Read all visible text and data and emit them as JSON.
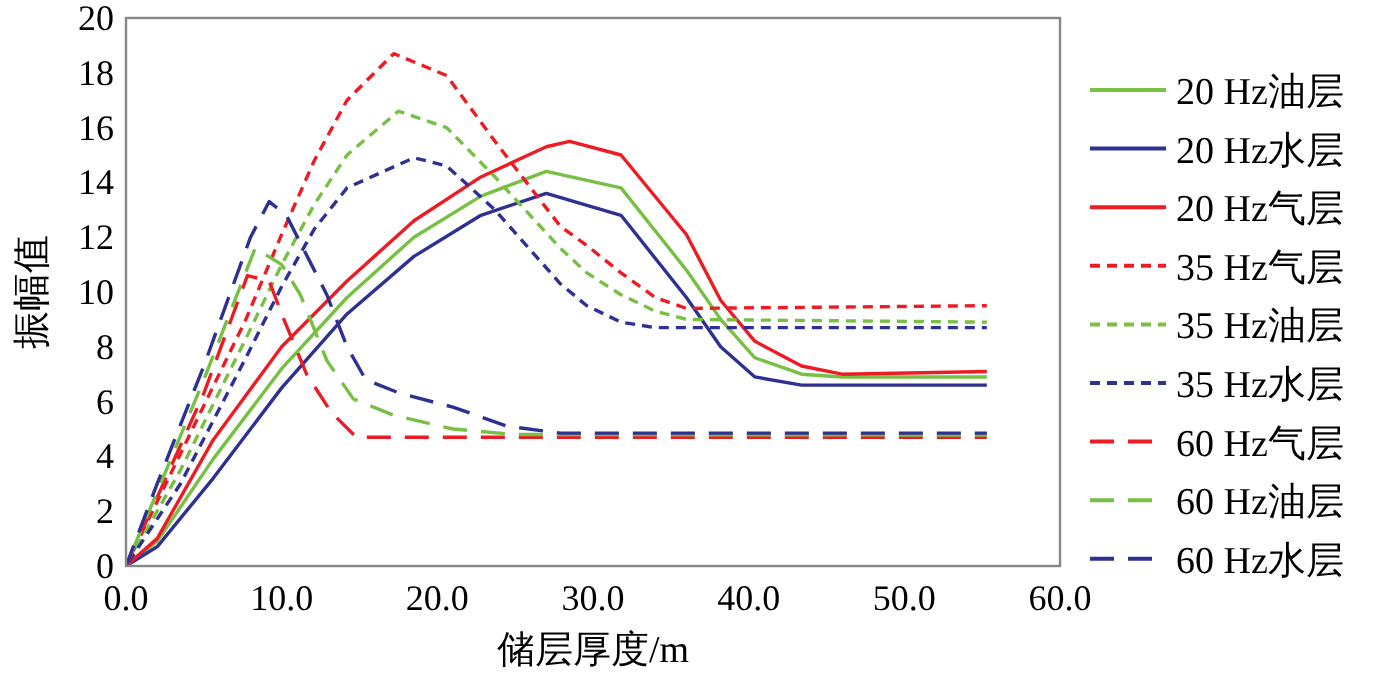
{
  "chart_data": {
    "type": "line",
    "xlabel": "储层厚度/m",
    "ylabel": "振幅值",
    "xlim": [
      0,
      60
    ],
    "ylim": [
      0,
      20
    ],
    "xticks": [
      {
        "value": 0,
        "label": "0.0"
      },
      {
        "value": 10,
        "label": "10.0"
      },
      {
        "value": 20,
        "label": "20.0"
      },
      {
        "value": 30,
        "label": "30.0"
      },
      {
        "value": 40,
        "label": "40.0"
      },
      {
        "value": 50,
        "label": "50.0"
      },
      {
        "value": 60,
        "label": "60.0"
      }
    ],
    "yticks": [
      0,
      2,
      4,
      6,
      8,
      10,
      12,
      14,
      16,
      18,
      20
    ],
    "grid": false,
    "legend": "right",
    "marker": "none",
    "series": [
      {
        "name": "20 Hz油层",
        "color": "#77c043",
        "line_style": "solid",
        "x": [
          0,
          2,
          5.6,
          10,
          14.2,
          18.5,
          22.8,
          27,
          31.8,
          36,
          38.2,
          40.4,
          43.4,
          46,
          55.3
        ],
        "values": [
          0,
          0.9,
          3.9,
          7.2,
          9.8,
          12,
          13.5,
          14.4,
          13.8,
          10.8,
          9,
          7.6,
          7,
          6.9,
          6.9
        ]
      },
      {
        "name": "20 Hz水层",
        "color": "#2e3192",
        "line_style": "solid",
        "x": [
          0,
          2,
          5.6,
          10,
          14.2,
          18.5,
          22.8,
          27,
          31.8,
          36,
          38.2,
          40.4,
          43.4,
          46,
          55.3
        ],
        "values": [
          0,
          0.7,
          3.2,
          6.5,
          9.2,
          11.3,
          12.8,
          13.6,
          12.8,
          9.8,
          8,
          6.9,
          6.6,
          6.6,
          6.6
        ]
      },
      {
        "name": "20 Hz气层",
        "color": "#ed1c24",
        "line_style": "solid",
        "x": [
          0,
          2,
          5.6,
          10,
          14.2,
          18.5,
          22.8,
          27,
          28.5,
          31.8,
          36,
          38.2,
          40.4,
          43.4,
          46,
          55.3
        ],
        "values": [
          0,
          1,
          4.6,
          8,
          10.4,
          12.6,
          14.2,
          15.3,
          15.5,
          15,
          12.1,
          9.7,
          8.2,
          7.3,
          7,
          7.1
        ]
      },
      {
        "name": "35 Hz气层",
        "color": "#ed1c24",
        "line_style": "dotted",
        "x": [
          0,
          3.5,
          7.7,
          10,
          12.1,
          14.2,
          17.2,
          20.6,
          23.7,
          27.9,
          29.6,
          31.8,
          34,
          36,
          55.3
        ],
        "values": [
          0,
          4.1,
          9,
          12.1,
          14.8,
          17,
          18.7,
          17.9,
          15.5,
          12.4,
          11.7,
          10.7,
          9.8,
          9.4,
          9.5
        ]
      },
      {
        "name": "35 Hz油层",
        "color": "#77c043",
        "line_style": "dotted",
        "x": [
          0,
          3.5,
          7.7,
          10,
          12.1,
          14.2,
          17.5,
          20.6,
          23.7,
          27.9,
          29.6,
          31.8,
          34,
          36,
          55.3
        ],
        "values": [
          0,
          3.5,
          8.3,
          11,
          13.2,
          15,
          16.6,
          16,
          14.2,
          11.6,
          10.7,
          9.9,
          9.3,
          9,
          8.9
        ]
      },
      {
        "name": "35 Hz水层",
        "color": "#2e3192",
        "line_style": "dotted",
        "x": [
          0,
          3.5,
          7.7,
          10,
          12.1,
          14.2,
          18.5,
          20.6,
          23.7,
          27.9,
          29.6,
          31.8,
          34,
          55.3
        ],
        "values": [
          0,
          3,
          7.6,
          10.2,
          12.3,
          13.8,
          14.9,
          14.6,
          13,
          10.3,
          9.5,
          8.9,
          8.7,
          8.7
        ]
      },
      {
        "name": "60 Hz气层",
        "color": "#ed1c24",
        "line_style": "dashed",
        "x": [
          0,
          2,
          5,
          7.8,
          9.2,
          10,
          11.6,
          13.2,
          14.8,
          55.3
        ],
        "values": [
          0,
          2.5,
          6.3,
          10.6,
          10.4,
          9.2,
          7,
          5.6,
          4.7,
          4.7
        ]
      },
      {
        "name": "60 Hz油层",
        "color": "#77c043",
        "line_style": "dashed",
        "x": [
          0,
          2,
          5,
          8.3,
          10,
          11.2,
          12.9,
          14.6,
          17.2,
          21,
          25,
          55.3
        ],
        "values": [
          0,
          2.7,
          6.8,
          11.6,
          11,
          9.9,
          7.5,
          6.1,
          5.5,
          5,
          4.8,
          4.78
        ]
      },
      {
        "name": "60 Hz水层",
        "color": "#2e3192",
        "line_style": "dashed",
        "x": [
          0,
          2,
          5,
          8,
          9.2,
          10.3,
          12.9,
          14.2,
          15.4,
          17.6,
          21,
          24.5,
          27.9,
          55.3
        ],
        "values": [
          0,
          3,
          7.3,
          12,
          13.3,
          12.8,
          9.9,
          8,
          6.8,
          6.3,
          5.8,
          5.1,
          4.85,
          4.85
        ]
      }
    ]
  }
}
